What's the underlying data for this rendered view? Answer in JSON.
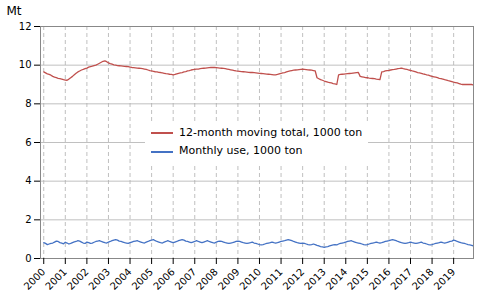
{
  "chart_data": {
    "type": "line",
    "ylabel": "Mt",
    "xlim": [
      1999.85,
      2019.92
    ],
    "xticks": [
      2000,
      2001,
      2002,
      2003,
      2004,
      2005,
      2006,
      2007,
      2008,
      2009,
      2010,
      2011,
      2012,
      2013,
      2014,
      2015,
      2016,
      2017,
      2018,
      2019
    ],
    "ylim": [
      0,
      12
    ],
    "yticks": [
      0,
      2,
      4,
      6,
      8,
      10,
      12
    ],
    "grid": true,
    "legend": "center",
    "x": [
      2000,
      2000.0833333333333,
      2000.1666666666667,
      2000.25,
      2000.3333333333333,
      2000.4166666666667,
      2000.5,
      2000.5833333333333,
      2000.6666666666667,
      2000.75,
      2000.8333333333333,
      2000.9166666666667,
      2001,
      2001.0833333333333,
      2001.1666666666667,
      2001.25,
      2001.3333333333333,
      2001.4166666666667,
      2001.5,
      2001.5833333333333,
      2001.6666666666667,
      2001.75,
      2001.8333333333333,
      2001.9166666666667,
      2002,
      2002.0833333333333,
      2002.1666666666667,
      2002.25,
      2002.3333333333333,
      2002.4166666666667,
      2002.5,
      2002.5833333333333,
      2002.6666666666667,
      2002.75,
      2002.8333333333333,
      2002.9166666666667,
      2003,
      2003.0833333333333,
      2003.1666666666667,
      2003.25,
      2003.3333333333333,
      2003.4166666666667,
      2003.5,
      2003.5833333333333,
      2003.6666666666667,
      2003.75,
      2003.8333333333333,
      2003.9166666666667,
      2004,
      2004.0833333333333,
      2004.1666666666667,
      2004.25,
      2004.3333333333333,
      2004.4166666666667,
      2004.5,
      2004.5833333333333,
      2004.6666666666667,
      2004.75,
      2004.8333333333333,
      2004.9166666666667,
      2005,
      2005.0833333333333,
      2005.1666666666667,
      2005.25,
      2005.3333333333333,
      2005.4166666666667,
      2005.5,
      2005.5833333333333,
      2005.6666666666667,
      2005.75,
      2005.8333333333333,
      2005.9166666666667,
      2006,
      2006.0833333333333,
      2006.1666666666667,
      2006.25,
      2006.3333333333333,
      2006.4166666666667,
      2006.5,
      2006.5833333333333,
      2006.6666666666667,
      2006.75,
      2006.8333333333333,
      2006.9166666666667,
      2007,
      2007.0833333333333,
      2007.1666666666667,
      2007.25,
      2007.3333333333333,
      2007.4166666666667,
      2007.5,
      2007.5833333333333,
      2007.6666666666667,
      2007.75,
      2007.8333333333333,
      2007.9166666666667,
      2008,
      2008.0833333333333,
      2008.1666666666667,
      2008.25,
      2008.3333333333333,
      2008.4166666666667,
      2008.5,
      2008.5833333333333,
      2008.6666666666667,
      2008.75,
      2008.8333333333333,
      2008.9166666666667,
      2009,
      2009.0833333333333,
      2009.1666666666667,
      2009.25,
      2009.3333333333333,
      2009.4166666666667,
      2009.5,
      2009.5833333333333,
      2009.6666666666667,
      2009.75,
      2009.8333333333333,
      2009.9166666666667,
      2010,
      2010.0833333333333,
      2010.1666666666667,
      2010.25,
      2010.3333333333333,
      2010.4166666666667,
      2010.5,
      2010.5833333333333,
      2010.6666666666667,
      2010.75,
      2010.8333333333333,
      2010.9166666666667,
      2011,
      2011.0833333333333,
      2011.1666666666667,
      2011.25,
      2011.3333333333333,
      2011.4166666666667,
      2011.5,
      2011.5833333333333,
      2011.6666666666667,
      2011.75,
      2011.8333333333333,
      2011.9166666666667,
      2012,
      2012.0833333333333,
      2012.1666666666667,
      2012.25,
      2012.3333333333333,
      2012.4166666666667,
      2012.5,
      2012.5833333333333,
      2012.6666666666667,
      2012.75,
      2012.8333333333333,
      2012.9166666666667,
      2013,
      2013.0833333333333,
      2013.1666666666667,
      2013.25,
      2013.3333333333333,
      2013.4166666666667,
      2013.5,
      2013.5833333333333,
      2013.6666666666667,
      2013.75,
      2013.8333333333333,
      2013.9166666666667,
      2014,
      2014.0833333333333,
      2014.1666666666667,
      2014.25,
      2014.3333333333333,
      2014.4166666666667,
      2014.5,
      2014.5833333333333,
      2014.6666666666667,
      2014.75,
      2014.8333333333333,
      2014.9166666666667,
      2015,
      2015.0833333333333,
      2015.1666666666667,
      2015.25,
      2015.3333333333333,
      2015.4166666666667,
      2015.5,
      2015.5833333333333,
      2015.6666666666667,
      2015.75,
      2015.8333333333333,
      2015.9166666666667,
      2016,
      2016.0833333333333,
      2016.1666666666667,
      2016.25,
      2016.3333333333333,
      2016.4166666666667,
      2016.5,
      2016.5833333333333,
      2016.6666666666667,
      2016.75,
      2016.8333333333333,
      2016.9166666666667,
      2017,
      2017.0833333333333,
      2017.1666666666667,
      2017.25,
      2017.3333333333333,
      2017.4166666666667,
      2017.5,
      2017.5833333333333,
      2017.6666666666667,
      2017.75,
      2017.8333333333333,
      2017.9166666666667,
      2018,
      2018.0833333333333,
      2018.1666666666667,
      2018.25,
      2018.3333333333333,
      2018.4166666666667,
      2018.5,
      2018.5833333333333,
      2018.6666666666667,
      2018.75,
      2018.8333333333333,
      2018.9166666666667,
      2019,
      2019.0833333333333,
      2019.1666666666667,
      2019.25,
      2019.3333333333333,
      2019.4166666666667,
      2019.5,
      2019.5833333333333,
      2019.6666666666667,
      2019.75,
      2019.8333333333333,
      2019.9166666666667
    ],
    "series": [
      {
        "name": "12-month moving total, 1000 ton",
        "color": "#C0504D",
        "values": [
          9.65,
          9.6,
          9.55,
          9.52,
          9.48,
          9.42,
          9.38,
          9.35,
          9.32,
          9.3,
          9.28,
          9.25,
          9.23,
          9.22,
          9.28,
          9.35,
          9.42,
          9.5,
          9.58,
          9.65,
          9.7,
          9.75,
          9.78,
          9.82,
          9.85,
          9.9,
          9.93,
          9.95,
          9.98,
          10.0,
          10.05,
          10.1,
          10.15,
          10.2,
          10.22,
          10.18,
          10.12,
          10.08,
          10.05,
          10.02,
          10.0,
          9.98,
          9.97,
          9.96,
          9.95,
          9.94,
          9.93,
          9.92,
          9.9,
          9.88,
          9.87,
          9.86,
          9.85,
          9.84,
          9.83,
          9.82,
          9.8,
          9.78,
          9.75,
          9.72,
          9.7,
          9.68,
          9.66,
          9.65,
          9.63,
          9.62,
          9.6,
          9.58,
          9.56,
          9.55,
          9.53,
          9.52,
          9.5,
          9.52,
          9.55,
          9.58,
          9.6,
          9.62,
          9.65,
          9.67,
          9.7,
          9.72,
          9.75,
          9.77,
          9.78,
          9.79,
          9.8,
          9.82,
          9.83,
          9.84,
          9.85,
          9.86,
          9.87,
          9.88,
          9.89,
          9.88,
          9.87,
          9.86,
          9.85,
          9.84,
          9.83,
          9.82,
          9.8,
          9.78,
          9.76,
          9.74,
          9.72,
          9.7,
          9.69,
          9.68,
          9.67,
          9.66,
          9.65,
          9.64,
          9.63,
          9.62,
          9.62,
          9.61,
          9.6,
          9.59,
          9.58,
          9.57,
          9.56,
          9.55,
          9.54,
          9.53,
          9.52,
          9.51,
          9.5,
          9.5,
          9.52,
          9.55,
          9.58,
          9.6,
          9.62,
          9.65,
          9.68,
          9.7,
          9.72,
          9.74,
          9.75,
          9.76,
          9.77,
          9.78,
          9.79,
          9.78,
          9.77,
          9.76,
          9.75,
          9.74,
          9.72,
          9.7,
          9.35,
          9.3,
          9.25,
          9.22,
          9.18,
          9.15,
          9.12,
          9.1,
          9.08,
          9.05,
          9.03,
          9.0,
          9.5,
          9.52,
          9.53,
          9.54,
          9.55,
          9.56,
          9.57,
          9.58,
          9.59,
          9.6,
          9.61,
          9.62,
          9.42,
          9.4,
          9.38,
          9.36,
          9.35,
          9.33,
          9.32,
          9.31,
          9.3,
          9.28,
          9.27,
          9.25,
          9.65,
          9.67,
          9.7,
          9.72,
          9.73,
          9.75,
          9.77,
          9.78,
          9.8,
          9.82,
          9.83,
          9.85,
          9.82,
          9.8,
          9.78,
          9.75,
          9.73,
          9.7,
          9.68,
          9.65,
          9.62,
          9.6,
          9.58,
          9.55,
          9.53,
          9.5,
          9.48,
          9.45,
          9.42,
          9.4,
          9.38,
          9.35,
          9.32,
          9.3,
          9.28,
          9.25,
          9.23,
          9.2,
          9.18,
          9.15,
          9.12,
          9.1,
          9.08,
          9.05,
          9.02,
          9.0,
          9.0,
          9.0,
          9.0,
          9.0,
          9.0,
          8.98
        ]
      },
      {
        "name": "Monthly use, 1000 ton",
        "color": "#4472C4",
        "values": [
          0.82,
          0.78,
          0.72,
          0.75,
          0.78,
          0.8,
          0.85,
          0.9,
          0.88,
          0.82,
          0.79,
          0.76,
          0.84,
          0.8,
          0.75,
          0.78,
          0.82,
          0.86,
          0.88,
          0.92,
          0.9,
          0.85,
          0.8,
          0.78,
          0.85,
          0.82,
          0.78,
          0.8,
          0.84,
          0.88,
          0.9,
          0.92,
          0.88,
          0.85,
          0.82,
          0.8,
          0.85,
          0.88,
          0.92,
          0.95,
          0.98,
          0.95,
          0.9,
          0.88,
          0.85,
          0.82,
          0.8,
          0.78,
          0.82,
          0.85,
          0.88,
          0.9,
          0.92,
          0.88,
          0.85,
          0.82,
          0.8,
          0.85,
          0.88,
          0.92,
          0.95,
          0.98,
          0.92,
          0.88,
          0.85,
          0.82,
          0.8,
          0.85,
          0.88,
          0.92,
          0.88,
          0.85,
          0.82,
          0.85,
          0.88,
          0.92,
          0.95,
          0.98,
          0.95,
          0.9,
          0.88,
          0.85,
          0.82,
          0.85,
          0.88,
          0.92,
          0.88,
          0.85,
          0.82,
          0.85,
          0.88,
          0.92,
          0.88,
          0.85,
          0.82,
          0.8,
          0.85,
          0.88,
          0.9,
          0.88,
          0.85,
          0.82,
          0.8,
          0.78,
          0.8,
          0.82,
          0.85,
          0.88,
          0.9,
          0.88,
          0.85,
          0.82,
          0.8,
          0.78,
          0.8,
          0.82,
          0.85,
          0.8,
          0.78,
          0.75,
          0.72,
          0.7,
          0.72,
          0.75,
          0.78,
          0.8,
          0.82,
          0.85,
          0.82,
          0.8,
          0.82,
          0.85,
          0.88,
          0.9,
          0.92,
          0.95,
          0.98,
          0.95,
          0.92,
          0.88,
          0.85,
          0.82,
          0.8,
          0.78,
          0.8,
          0.78,
          0.75,
          0.72,
          0.7,
          0.72,
          0.75,
          0.72,
          0.68,
          0.65,
          0.62,
          0.6,
          0.58,
          0.6,
          0.62,
          0.65,
          0.68,
          0.7,
          0.72,
          0.7,
          0.75,
          0.78,
          0.8,
          0.82,
          0.85,
          0.88,
          0.9,
          0.92,
          0.88,
          0.85,
          0.82,
          0.8,
          0.78,
          0.75,
          0.72,
          0.7,
          0.72,
          0.75,
          0.78,
          0.8,
          0.82,
          0.85,
          0.82,
          0.8,
          0.82,
          0.85,
          0.88,
          0.9,
          0.92,
          0.95,
          0.98,
          0.95,
          0.92,
          0.88,
          0.85,
          0.82,
          0.8,
          0.78,
          0.8,
          0.82,
          0.85,
          0.82,
          0.8,
          0.78,
          0.8,
          0.82,
          0.85,
          0.8,
          0.78,
          0.75,
          0.72,
          0.7,
          0.72,
          0.75,
          0.78,
          0.8,
          0.82,
          0.85,
          0.82,
          0.8,
          0.82,
          0.85,
          0.88,
          0.9,
          0.95,
          0.92,
          0.88,
          0.85,
          0.82,
          0.8,
          0.78,
          0.75,
          0.72,
          0.7,
          0.68,
          0.65
        ]
      }
    ]
  }
}
